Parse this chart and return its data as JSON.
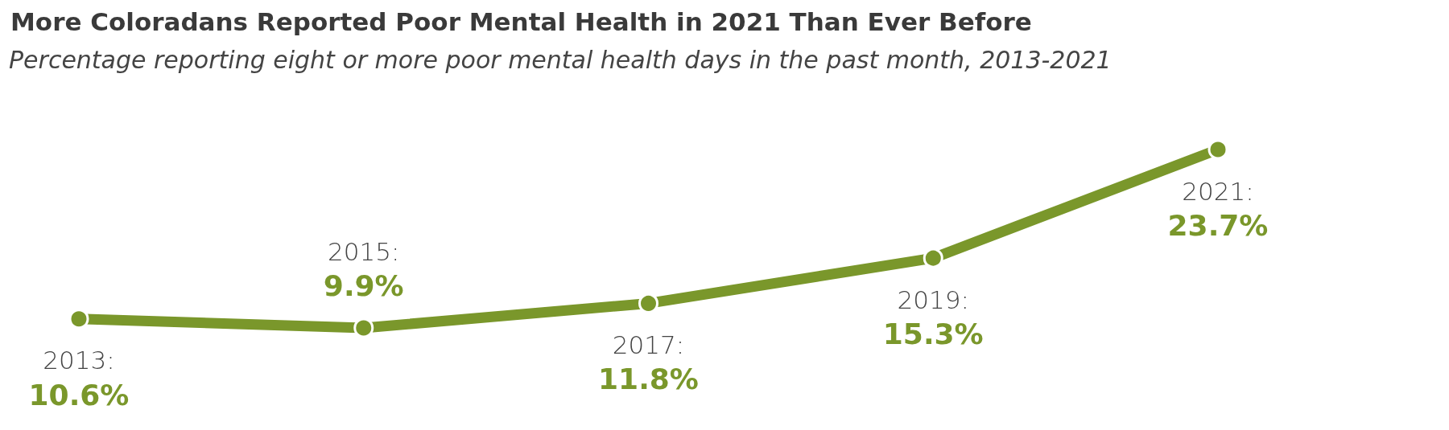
{
  "chart_data": {
    "type": "line",
    "title": "More Coloradans Reported Poor Mental Health in 2021 Than Ever Before",
    "subtitle": "Percentage reporting eight or more poor mental health days in the past month, 2013-2021",
    "categories": [
      null,
      null,
      null,
      null,
      null
    ],
    "series": [
      {
        "color": "#7a972b",
        "values": [
          10.6,
          9.9,
          11.8,
          15.3,
          23.7
        ],
        "value_labels": [
          "10.6%",
          "9.9%",
          "11.8%",
          "15.3%",
          "23.7%"
        ]
      }
    ],
    "annotations": [
      "2013:",
      "2015:",
      "2017:",
      "2019:",
      "2021:"
    ],
    "tick_labels": false,
    "grid": false,
    "marker": "circle",
    "line_style": "solid"
  }
}
